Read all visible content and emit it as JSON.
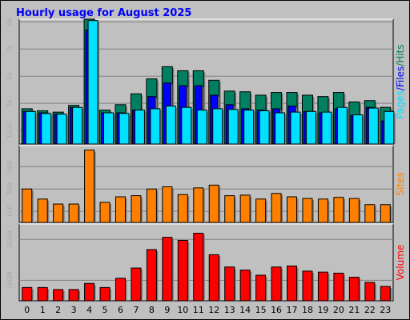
{
  "chart_data": {
    "type": "bar",
    "title": "Hourly usage for August 2025",
    "categories": [
      "0",
      "1",
      "2",
      "3",
      "4",
      "5",
      "6",
      "7",
      "8",
      "9",
      "10",
      "11",
      "12",
      "13",
      "14",
      "15",
      "16",
      "17",
      "18",
      "19",
      "20",
      "21",
      "22",
      "23"
    ],
    "grid": true,
    "legend_placement": "right",
    "colors": {
      "hits": "#008060",
      "files": "#0000ff",
      "pages": "#00e0ff",
      "sites": "#ff8000",
      "volume": "#ff0000",
      "title": "#0000ff",
      "background": "#c0c0c0",
      "plot": "#c0c0c0"
    },
    "panels": [
      {
        "id": "top",
        "ylim": [
          0,
          9200
        ],
        "yticks": [
          1000,
          3000,
          5000,
          7000,
          9000
        ],
        "yticklabels": [
          "1000",
          "3k",
          "5k",
          "7k",
          "9k"
        ],
        "legend": [
          "Pages",
          "Files",
          "Hits"
        ],
        "series": [
          {
            "name": "Hits",
            "color": "#008060",
            "values": [
              2600,
              2450,
              2350,
              2850,
              9200,
              2500,
              2900,
              3700,
              4800,
              5700,
              5400,
              5400,
              4700,
              3900,
              3850,
              3600,
              3800,
              3800,
              3600,
              3500,
              3800,
              3100,
              3200,
              2700
            ]
          },
          {
            "name": "Files",
            "color": "#0000ff",
            "values": [
              2400,
              2300,
              2200,
              2700,
              8400,
              2300,
              2300,
              2500,
              3500,
              4500,
              4300,
              4300,
              3600,
              2900,
              2600,
              2500,
              2600,
              2800,
              2400,
              2300,
              2600,
              2100,
              2700,
              1700
            ]
          },
          {
            "name": "Pages",
            "color": "#00e0ff",
            "values": [
              2400,
              2250,
              2200,
              2700,
              9100,
              2300,
              2250,
              2500,
              2600,
              2800,
              2700,
              2500,
              2600,
              2550,
              2500,
              2450,
              2300,
              2350,
              2400,
              2350,
              2700,
              2150,
              2650,
              2400
            ]
          }
        ]
      },
      {
        "id": "middle",
        "ylim": [
          0,
          690
        ],
        "yticks": [
          100,
          300,
          500
        ],
        "yticklabels": [
          "100",
          "300",
          "500"
        ],
        "legend": [
          "Sites"
        ],
        "series": [
          {
            "name": "Sites",
            "color": "#ff8000",
            "values": [
              300,
              210,
              165,
              165,
              650,
              180,
              230,
              240,
              300,
              320,
              250,
              310,
              335,
              240,
              245,
              210,
              260,
              230,
              215,
              210,
              225,
              215,
              160,
              160
            ]
          }
        ]
      },
      {
        "id": "bottom",
        "ylim": [
          0,
          375
        ],
        "yticks": [
          100,
          300
        ],
        "yticklabels": [
          "100M",
          "300M"
        ],
        "legend": [
          "Volume"
        ],
        "series": [
          {
            "name": "Volume",
            "color": "#ff0000",
            "values": [
              65,
              65,
              55,
              55,
              85,
              65,
              110,
              160,
              250,
              310,
              295,
              330,
              225,
              165,
              150,
              125,
              165,
              170,
              145,
              140,
              135,
              115,
              90,
              70
            ]
          }
        ]
      }
    ]
  }
}
